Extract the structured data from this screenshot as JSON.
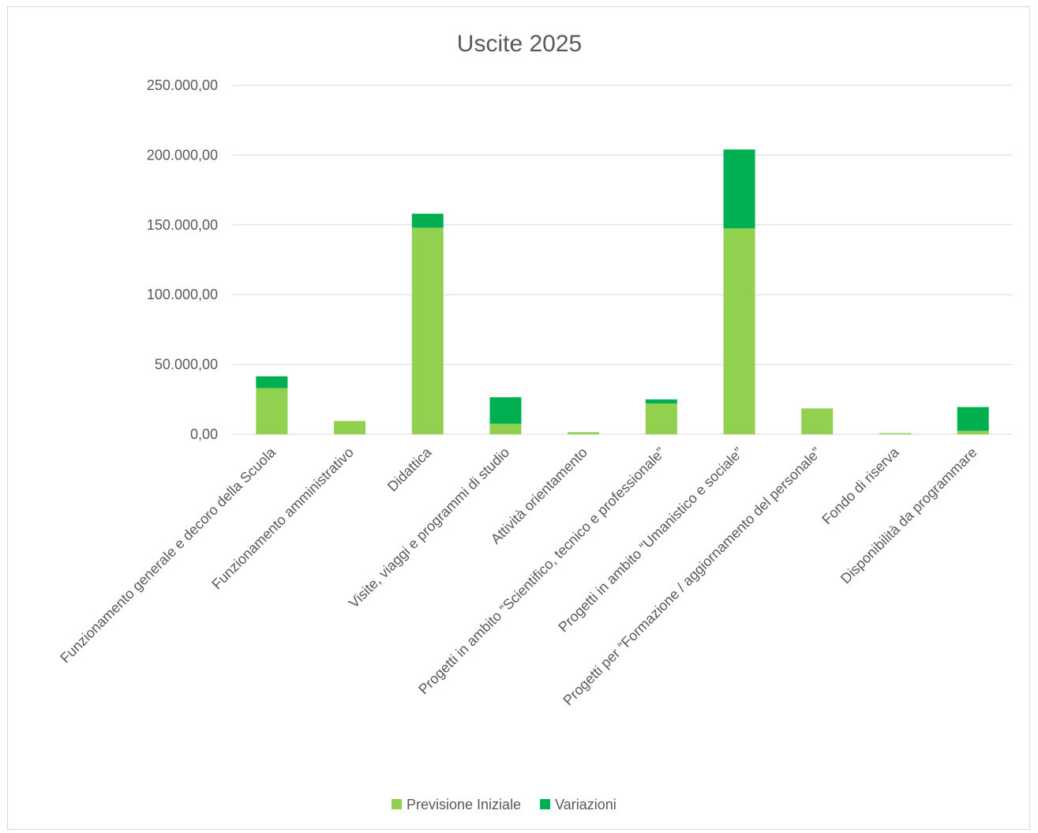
{
  "chart_data": {
    "type": "bar",
    "stacked": true,
    "title": "Uscite 2025",
    "xlabel": "",
    "ylabel": "",
    "ylim": [
      0,
      250000
    ],
    "yticks": [
      0,
      50000,
      100000,
      150000,
      200000,
      250000
    ],
    "ytick_labels": [
      "0,00",
      "50.000,00",
      "100.000,00",
      "150.000,00",
      "200.000,00",
      "250.000,00"
    ],
    "grid": true,
    "legend_position": "bottom",
    "categories": [
      "Funzionamento generale e decoro della Scuola",
      "Funzionamento amministrativo",
      "Didattica",
      "Visite, viaggi e programmi di studio",
      "Attività  orientamento",
      "Progetti in ambito “Scientifico, tecnico e professionale”",
      "Progetti in ambito “Umanistico e sociale”",
      "Progetti per “Formazione / aggiornamento del personale”",
      "Fondo di riserva",
      "Disponibilità da programmare"
    ],
    "series": [
      {
        "name": "Previsione Iniziale",
        "color": "#92d050",
        "values": [
          33000,
          9500,
          148000,
          7500,
          1500,
          22000,
          147500,
          18500,
          800,
          2500
        ]
      },
      {
        "name": "Variazioni",
        "color": "#00b050",
        "values": [
          8500,
          0,
          10000,
          19000,
          0,
          3000,
          56500,
          0,
          0,
          17000
        ]
      }
    ]
  }
}
